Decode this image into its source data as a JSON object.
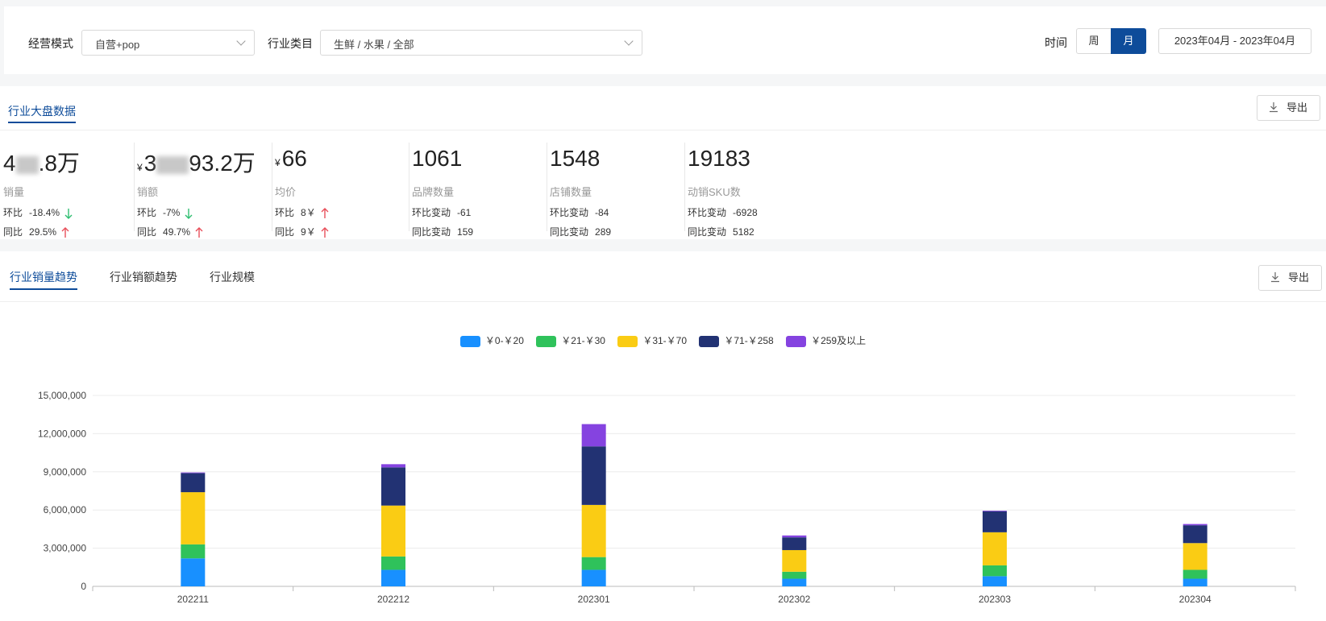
{
  "filters": {
    "mode_label": "经营模式",
    "mode_value": "自营+pop",
    "category_label": "行业类目",
    "category_value": "生鲜 / 水果 / 全部",
    "time_label": "时间",
    "time_options": [
      "周",
      "月"
    ],
    "time_selected": "月",
    "date_range": "2023年04月 - 2023年04月"
  },
  "overview": {
    "tab_title": "行业大盘数据",
    "export_label": "导出",
    "metrics": [
      {
        "value_prefix": "4",
        "value_suffix": ".8万",
        "name": "销量",
        "row1_label": "环比",
        "row1_value": "-18.4%",
        "row1_dir": "down",
        "row2_label": "同比",
        "row2_value": "29.5%",
        "row2_dir": "up"
      },
      {
        "currency": "¥",
        "value_prefix": "3",
        "value_suffix": "93.2万",
        "name": "销额",
        "row1_label": "环比",
        "row1_value": "-7%",
        "row1_dir": "down",
        "row2_label": "同比",
        "row2_value": "49.7%",
        "row2_dir": "up"
      },
      {
        "currency": "¥",
        "value_prefix": "66",
        "value_suffix": "",
        "name": "均价",
        "row1_label": "环比",
        "row1_value": "8￥",
        "row1_dir": "up",
        "row2_label": "同比",
        "row2_value": "9￥",
        "row2_dir": "up"
      },
      {
        "value_prefix": "1061",
        "value_suffix": "",
        "name": "品牌数量",
        "row1_label": "环比变动",
        "row1_value": "-61",
        "row2_label": "同比变动",
        "row2_value": "159"
      },
      {
        "value_prefix": "1548",
        "value_suffix": "",
        "name": "店铺数量",
        "row1_label": "环比变动",
        "row1_value": "-84",
        "row2_label": "同比变动",
        "row2_value": "289"
      },
      {
        "value_prefix": "19183",
        "value_suffix": "",
        "name": "动销SKU数",
        "row1_label": "环比变动",
        "row1_value": "-6928",
        "row2_label": "同比变动",
        "row2_value": "5182"
      }
    ]
  },
  "trend": {
    "tabs": [
      "行业销量趋势",
      "行业销额趋势",
      "行业规模"
    ],
    "active_tab": "行业销量趋势",
    "export_label": "导出"
  },
  "colors": {
    "accent": "#0e4c9a",
    "up": "#e8505b",
    "down": "#2fbf71"
  },
  "chart_data": {
    "type": "bar",
    "stacked": true,
    "categories": [
      "202211",
      "202212",
      "202301",
      "202302",
      "202303",
      "202304"
    ],
    "series": [
      {
        "name": "￥0-￥20",
        "color": "#1890ff",
        "values": [
          2200000,
          1300000,
          1300000,
          600000,
          800000,
          600000
        ]
      },
      {
        "name": "￥21-￥30",
        "color": "#2fc25b",
        "values": [
          1100000,
          1050000,
          1000000,
          550000,
          850000,
          700000
        ]
      },
      {
        "name": "￥31-￥70",
        "color": "#facc14",
        "values": [
          4100000,
          4000000,
          4100000,
          1700000,
          2600000,
          2100000
        ]
      },
      {
        "name": "￥71-￥258",
        "color": "#223273",
        "values": [
          1500000,
          3000000,
          4600000,
          1000000,
          1650000,
          1400000
        ]
      },
      {
        "name": "￥259及以上",
        "color": "#8543e0",
        "values": [
          50000,
          250000,
          1750000,
          150000,
          50000,
          100000
        ]
      }
    ],
    "yticks": [
      "0",
      "3,000,000",
      "6,000,000",
      "9,000,000",
      "12,000,000",
      "15,000,000"
    ],
    "ylim": [
      0,
      15000000
    ],
    "legend_position": "top",
    "grid": true
  }
}
